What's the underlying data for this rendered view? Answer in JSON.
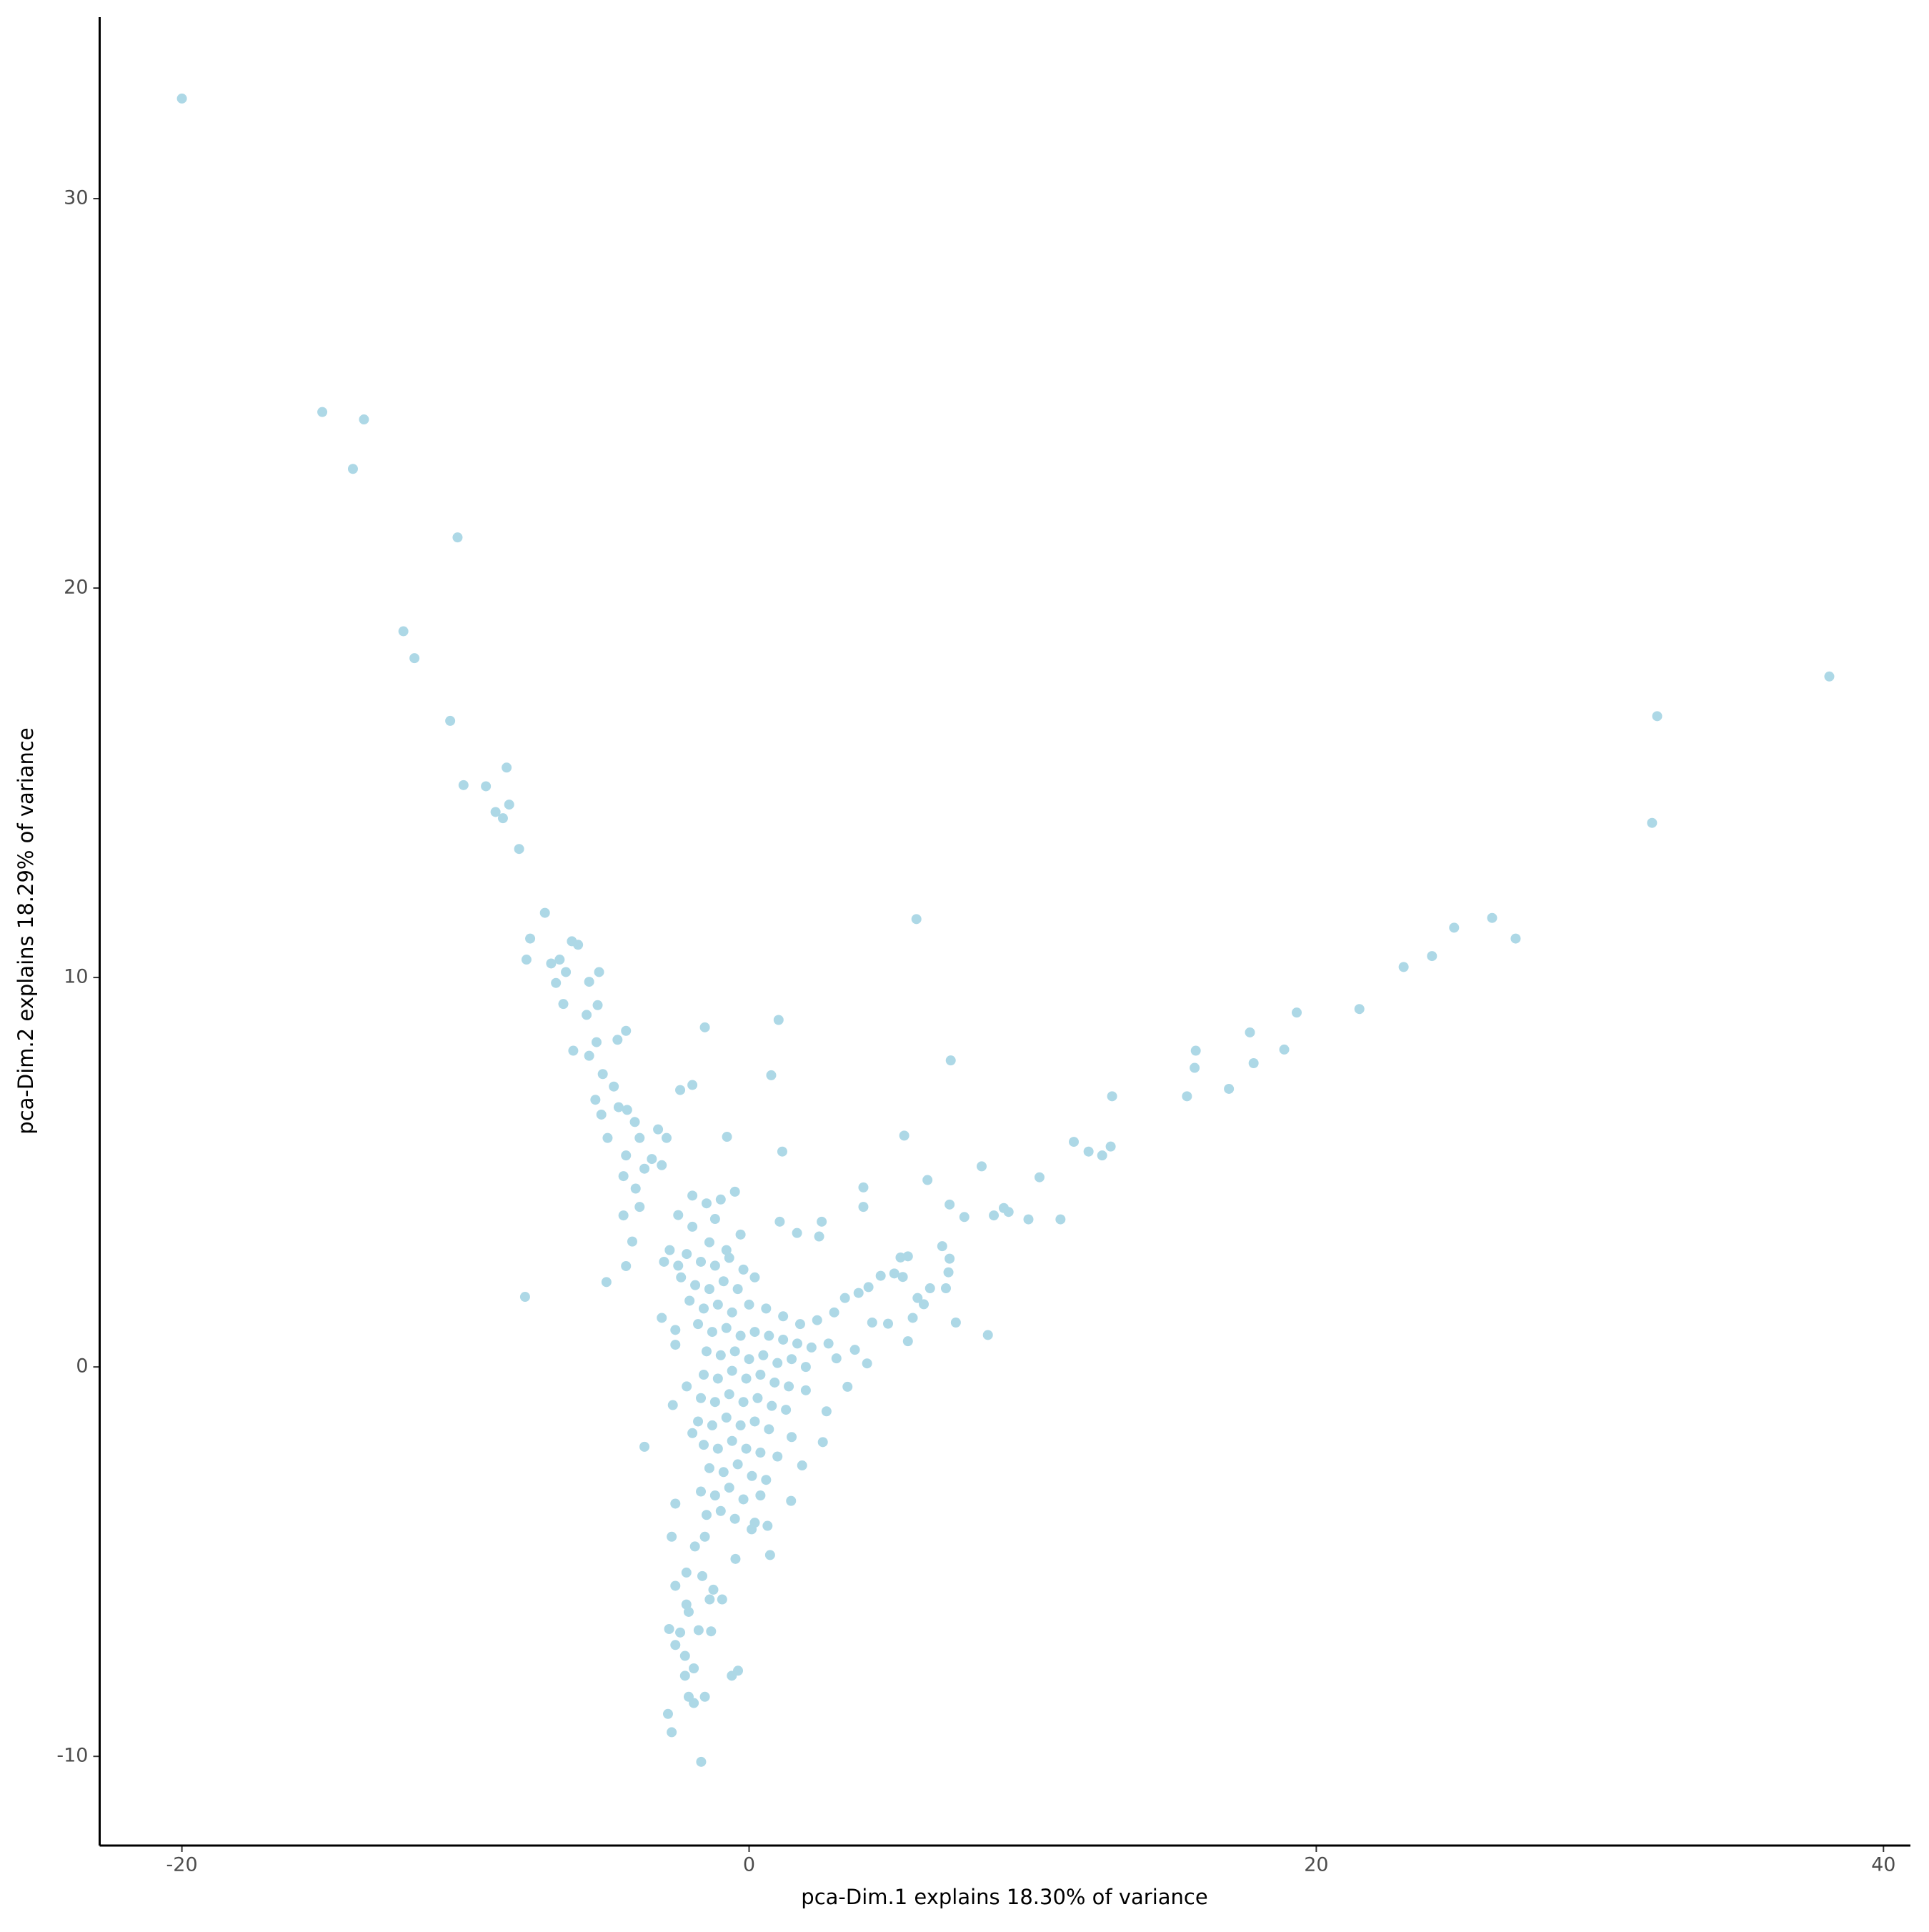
{
  "chart_data": {
    "type": "scatter",
    "x_label": "pca-Dim.1 explains 18.30% of variance",
    "y_label": "pca-Dim.2 explains 18.29% of variance",
    "color": "#add8e6",
    "xlim": [
      -22.9,
      40.95
    ],
    "ylim": [
      -12.29,
      34.66
    ],
    "xticks": [
      -20,
      0,
      20,
      40
    ],
    "yticks": [
      -10,
      0,
      10,
      20,
      30
    ],
    "grid": false,
    "x": [
      -20.0,
      -15.05,
      -13.58,
      -13.97,
      -10.28,
      -12.19,
      -11.8,
      -10.54,
      -8.55,
      -10.07,
      -9.28,
      -8.46,
      -8.94,
      -8.68,
      -8.11,
      -7.2,
      -7.72,
      -7.85,
      -6.68,
      -6.98,
      -6.25,
      -6.03,
      -6.46,
      -6.81,
      -5.29,
      -5.64,
      -6.55,
      -5.34,
      -5.73,
      -4.34,
      -4.64,
      -6.2,
      -5.38,
      -5.64,
      -5.16,
      -5.42,
      -4.77,
      -5.21,
      -4.6,
      -4.3,
      -4.03,
      -4.99,
      -3.86,
      -4.34,
      -3.21,
      -2.91,
      -3.08,
      -4.43,
      -3.69,
      -3.43,
      -4.0,
      -3.86,
      -4.43,
      -4.12,
      -4.34,
      -5.03,
      -7.9,
      -3.69,
      -1.56,
      -2.0,
      -2.43,
      -0.78,
      0.78,
      1.04,
      1.17,
      5.9,
      7.11,
      5.47,
      6.29,
      4.03,
      4.03,
      2.56,
      1.69,
      2.47,
      1.08,
      7.07,
      7.59,
      8.2,
      8.63,
      8.98,
      9.15,
      9.85,
      10.24,
      10.98,
      11.45,
      11.97,
      12.45,
      12.75,
      12.8,
      15.44,
      15.71,
      15.75,
      16.92,
      17.66,
      17.79,
      18.87,
      19.31,
      21.52,
      23.08,
      24.08,
      24.86,
      26.2,
      27.03,
      31.84,
      32.02,
      38.09,
      6.81,
      7.07,
      7.03,
      6.94,
      6.38,
      5.34,
      5.6,
      5.12,
      5.42,
      4.64,
      4.21,
      3.86,
      3.38,
      5.94,
      6.16,
      5.77,
      7.29,
      8.42,
      5.6,
      4.9,
      4.34,
      4.16,
      3.73,
      3.47,
      3.08,
      2.73,
      2.6,
      1.87,
      1.48,
      0.74,
      0.65,
      0.09,
      -0.48,
      -0.39,
      -0.61,
      -1.69,
      -2.73,
      -2.86,
      -1.95,
      -2.13,
      -1.56,
      -2.26,
      -1.95,
      -2.26,
      -2.6,
      -2.82,
      -2.43,
      -1.34,
      -1.78,
      -2.13,
      -2.21,
      -0.95,
      -1.39,
      -2.6,
      -1.26,
      -1.65,
      -2.21,
      -2.73,
      -1.91,
      -1.56,
      -2.6,
      -2.69,
      -2.6,
      -3.08,
      -2.6,
      -2.0,
      -1.5,
      -1.0,
      -0.5,
      -2.5,
      -2.0,
      -1.2,
      -0.3,
      -2.8,
      -2.2,
      -1.7,
      -1.2,
      -0.7,
      -0.2,
      -2.4,
      -1.9,
      -1.4,
      -0.9,
      -0.4,
      0.2,
      -2.1,
      -1.6,
      -1.1,
      -0.6,
      0.0,
      0.6,
      1.2,
      1.8,
      2.4,
      3.0,
      -1.8,
      -1.3,
      -0.8,
      -0.3,
      0.2,
      0.7,
      1.2,
      1.7,
      2.2,
      2.8,
      -1.5,
      -1.0,
      -0.5,
      0.0,
      0.5,
      1.0,
      1.5,
      2.0,
      -1.6,
      -1.1,
      -0.6,
      -0.1,
      0.4,
      0.9,
      1.4,
      2.0,
      -1.7,
      -1.2,
      -0.7,
      -0.2,
      0.3,
      0.8,
      1.3,
      -1.8,
      -1.3,
      -0.8,
      -0.3,
      0.2,
      0.7,
      1.5,
      -1.6,
      -1.1,
      -0.6,
      -0.1,
      0.4,
      1.0,
      -1.4,
      -0.9,
      -0.4,
      0.1,
      0.6,
      -1.7,
      -1.2,
      -0.7,
      -0.2,
      0.4,
      -1.5,
      -1.0,
      -0.5,
      0.2,
      -2.0,
      -2.2,
      -2.5,
      -3.0,
      -1.4,
      -0.8
    ],
    "y": [
      32.57,
      24.52,
      24.33,
      23.06,
      21.3,
      18.89,
      18.2,
      16.59,
      15.39,
      14.94,
      14.91,
      14.44,
      14.25,
      14.09,
      13.3,
      11.66,
      11.0,
      10.46,
      10.46,
      10.36,
      10.93,
      10.84,
      10.14,
      9.86,
      10.14,
      9.89,
      9.32,
      9.29,
      9.04,
      8.63,
      8.4,
      8.12,
      8.34,
      7.99,
      7.52,
      6.86,
      7.2,
      6.48,
      6.67,
      6.6,
      6.29,
      5.88,
      5.88,
      5.43,
      6.1,
      5.88,
      5.18,
      4.9,
      5.09,
      5.34,
      4.58,
      4.11,
      3.89,
      3.22,
      2.59,
      2.18,
      1.8,
      -2.05,
      8.72,
      7.24,
      7.11,
      5.91,
      7.49,
      8.91,
      5.53,
      11.5,
      7.87,
      5.94,
      4.8,
      4.61,
      4.11,
      3.73,
      3.44,
      3.35,
      3.73,
      4.17,
      3.85,
      5.15,
      3.89,
      4.08,
      3.98,
      3.79,
      4.87,
      3.79,
      5.78,
      5.53,
      5.43,
      5.66,
      6.95,
      6.95,
      7.68,
      8.12,
      7.14,
      8.59,
      7.8,
      8.15,
      9.1,
      9.19,
      10.27,
      10.55,
      11.28,
      11.53,
      11.0,
      13.97,
      16.71,
      17.73,
      3.1,
      2.78,
      2.43,
      2.02,
      2.02,
      2.81,
      2.84,
      2.4,
      2.31,
      2.34,
      2.05,
      1.9,
      1.77,
      1.77,
      1.61,
      1.26,
      1.14,
      0.82,
      0.66,
      1.11,
      1.14,
      0.09,
      0.44,
      -0.51,
      0.22,
      -1.14,
      -1.93,
      -2.53,
      -3.44,
      -4.83,
      -4.08,
      -4.17,
      -4.93,
      -7.8,
      -7.93,
      -10.14,
      -9.38,
      -8.91,
      -8.63,
      -8.47,
      -8.47,
      -7.93,
      -7.74,
      -7.42,
      -7.14,
      -6.73,
      -6.82,
      -6.79,
      -6.76,
      -6.29,
      -6.1,
      -5.97,
      -5.97,
      -5.62,
      -5.72,
      -5.37,
      -5.28,
      -4.36,
      -4.61,
      -4.36,
      -3.51,
      -0.98,
      0.57,
      1.26,
      0.95,
      4.4,
      4.2,
      4.3,
      4.5,
      3.9,
      3.6,
      3.8,
      3.4,
      3.0,
      2.9,
      2.7,
      2.6,
      2.8,
      2.5,
      2.3,
      2.1,
      2.0,
      2.2,
      2.0,
      2.3,
      1.7,
      1.5,
      1.6,
      1.4,
      1.6,
      1.5,
      1.3,
      1.1,
      1.2,
      1.4,
      1.1,
      0.9,
      1.0,
      0.8,
      0.9,
      0.8,
      0.7,
      0.6,
      0.5,
      0.6,
      0.4,
      0.3,
      0.4,
      0.2,
      0.3,
      0.1,
      0.2,
      0.0,
      -0.2,
      -0.3,
      -0.1,
      -0.3,
      -0.2,
      -0.4,
      -0.5,
      -0.6,
      -0.8,
      -0.9,
      -0.7,
      -0.9,
      -0.8,
      -1.0,
      -1.1,
      -1.4,
      -1.5,
      -1.3,
      -1.5,
      -1.4,
      -1.6,
      -1.8,
      -2.0,
      -2.1,
      -1.9,
      -2.1,
      -2.2,
      -2.3,
      -2.6,
      -2.7,
      -2.5,
      -2.8,
      -2.9,
      -3.2,
      -3.3,
      -3.1,
      -3.4,
      -3.3,
      -3.8,
      -3.7,
      -3.9,
      -4.0,
      -1.7,
      -0.5,
      2.6,
      2.7,
      3.2,
      3.0
    ]
  }
}
